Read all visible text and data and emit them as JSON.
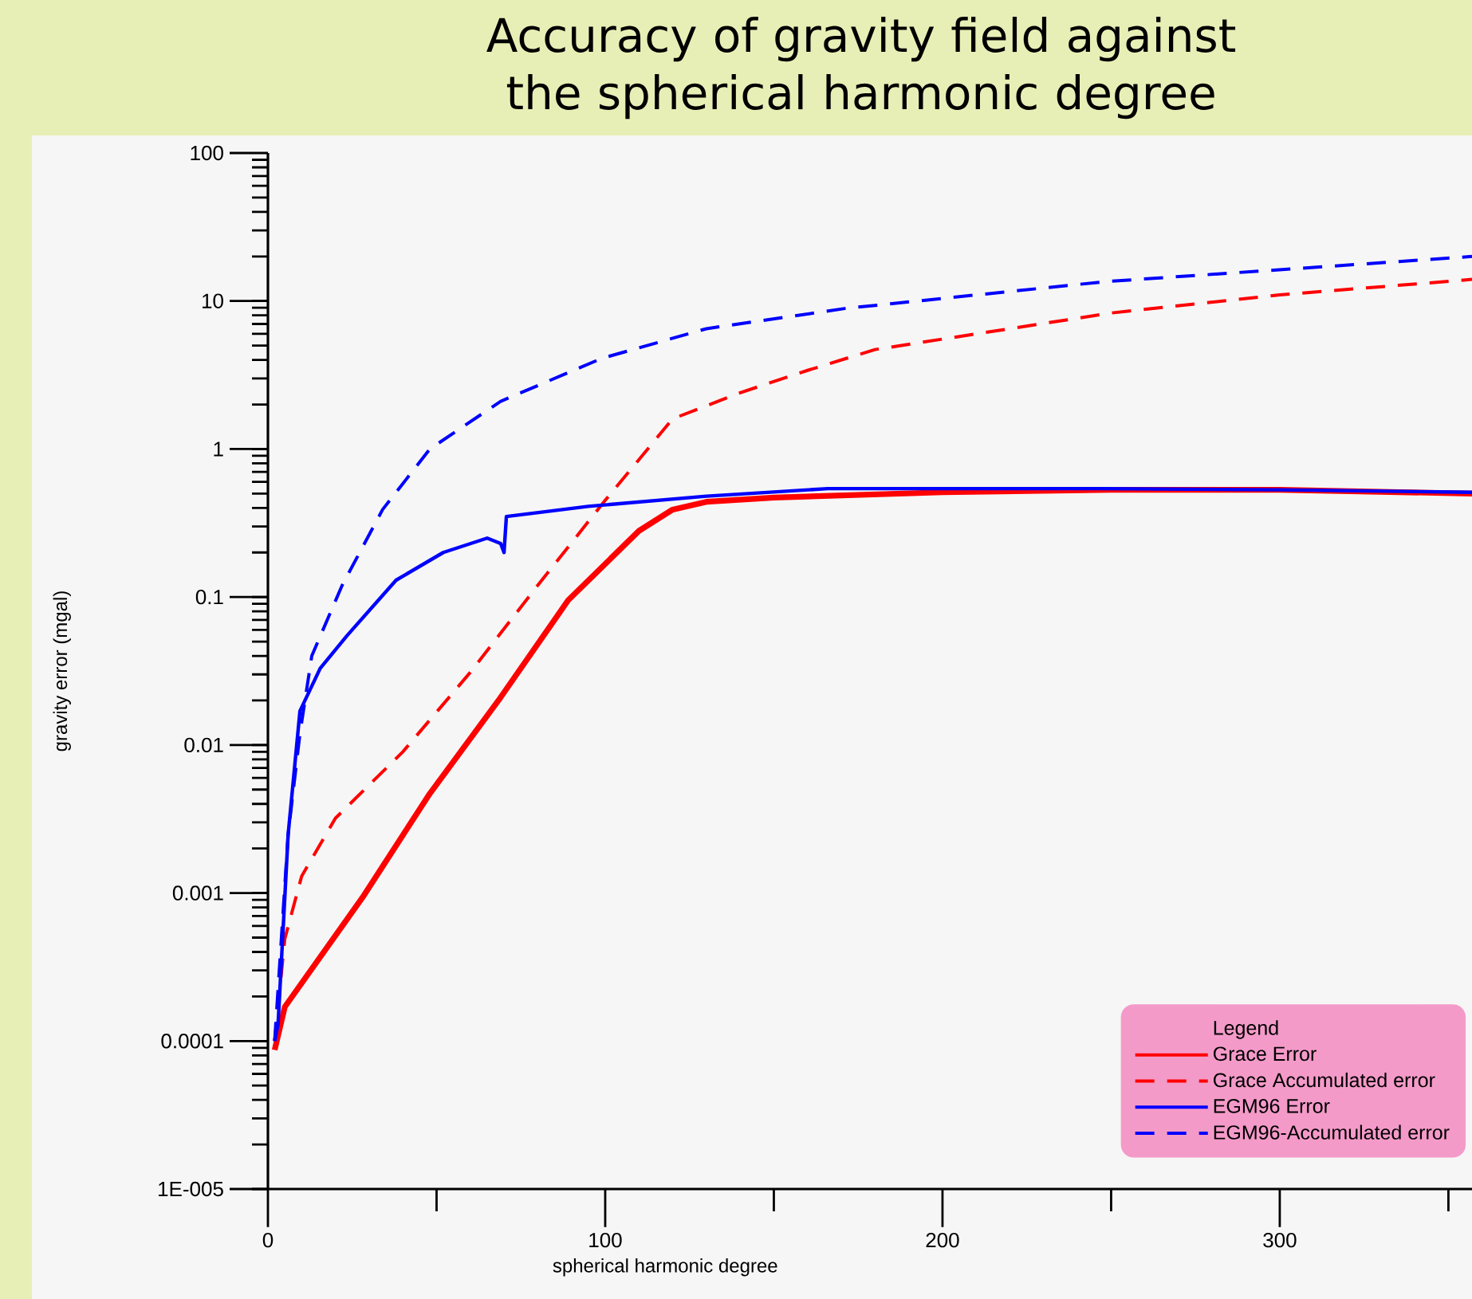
{
  "chart_data": {
    "type": "line",
    "title": "Accuracy of gravity field against the spherical harmonic degree",
    "xlabel": "spherical harmonic degree",
    "ylabel": "gravity error (mgal)",
    "legend_title": "Legend",
    "legend": "bottom right",
    "log": "y",
    "xlim": [
      0,
      357
    ],
    "ylim": [
      1e-05,
      100
    ],
    "xticks": [
      0,
      {
        "value": 50,
        "label": null
      },
      100,
      {
        "value": 150,
        "label": null
      },
      200,
      {
        "value": 250,
        "label": null
      },
      300,
      {
        "value": 350,
        "label": null
      }
    ],
    "yticks": [
      {
        "value": 1e-05,
        "label": "1E-005"
      },
      0.0001,
      0.001,
      0.01,
      0.1,
      1,
      10,
      100
    ],
    "series": [
      {
        "name": "Grace Error",
        "color": "#ff0000",
        "line_style": "solid",
        "x": [
          2,
          5,
          28,
          48,
          69,
          89,
          110,
          120,
          130,
          150,
          200,
          250,
          300,
          357
        ],
        "values": [
          8.7e-05,
          0.00017,
          0.00093,
          0.0047,
          0.021,
          0.095,
          0.28,
          0.39,
          0.44,
          0.47,
          0.51,
          0.53,
          0.53,
          0.5
        ]
      },
      {
        "name": "Grace Accumulated error",
        "color": "#ff0000",
        "line_style": "dashed",
        "x": [
          2,
          5,
          10,
          20,
          40,
          60,
          80,
          100,
          120,
          140,
          160,
          180,
          250,
          300,
          357
        ],
        "values": [
          0.0001,
          0.00049,
          0.0013,
          0.0032,
          0.009,
          0.031,
          0.12,
          0.45,
          1.6,
          2.4,
          3.4,
          4.7,
          8.3,
          11,
          14
        ]
      },
      {
        "name": "EGM96 Error",
        "color": "#0000ff",
        "line_style": "solid",
        "x": [
          2,
          3,
          6,
          9.5,
          15.5,
          23.5,
          38,
          52,
          65,
          69,
          70,
          70.7,
          95,
          130,
          166,
          248,
          300,
          357
        ],
        "values": [
          0.0001,
          0.00013,
          0.0025,
          0.017,
          0.033,
          0.055,
          0.13,
          0.2,
          0.25,
          0.23,
          0.2,
          0.35,
          0.41,
          0.48,
          0.54,
          0.54,
          0.53,
          0.51
        ]
      },
      {
        "name": "EGM96-Accumulated error",
        "color": "#0000ff",
        "line_style": "dashed",
        "x": [
          2,
          6,
          9.5,
          13,
          22,
          34,
          48,
          69,
          99,
          130,
          171,
          248,
          357
        ],
        "values": [
          0.0001,
          0.0025,
          0.012,
          0.04,
          0.12,
          0.39,
          1.0,
          2.1,
          4.1,
          6.5,
          8.9,
          13.5,
          20
        ]
      }
    ]
  }
}
